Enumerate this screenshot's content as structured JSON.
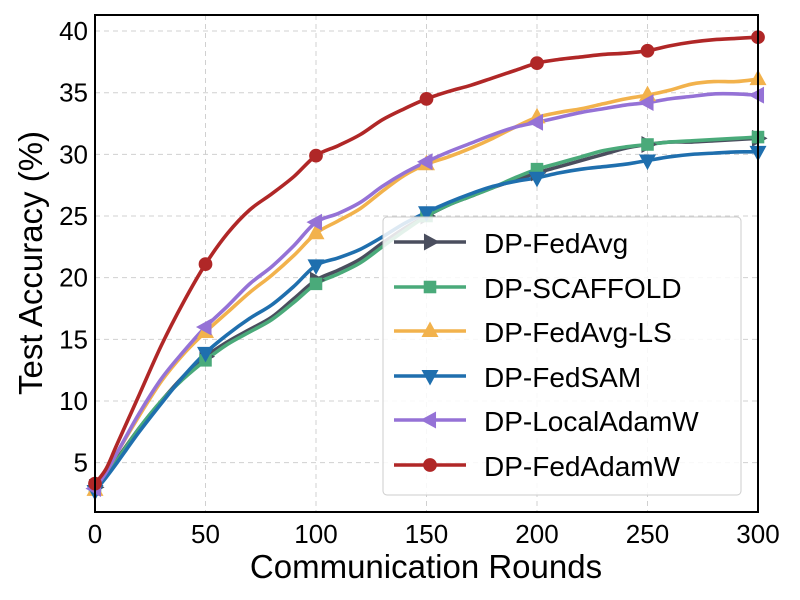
{
  "chart_data": {
    "type": "line",
    "title": "",
    "xlabel": "Communication Rounds",
    "ylabel": "Test Accuracy (%)",
    "xlim": [
      0,
      300
    ],
    "ylim": [
      1,
      41.3
    ],
    "xticks": [
      0,
      50,
      100,
      150,
      200,
      250,
      300
    ],
    "yticks": [
      5,
      10,
      15,
      20,
      25,
      30,
      35,
      40
    ],
    "grid": true,
    "legend_position": "lower-right",
    "x": [
      0,
      5,
      10,
      20,
      30,
      40,
      50,
      60,
      70,
      80,
      90,
      100,
      110,
      120,
      130,
      140,
      150,
      160,
      170,
      180,
      190,
      200,
      210,
      220,
      230,
      240,
      250,
      260,
      270,
      280,
      290,
      300
    ],
    "marker_x": [
      0,
      50,
      100,
      150,
      200,
      250,
      300
    ],
    "series": [
      {
        "name": "DP-FedAvg",
        "color": "#4a4e5e",
        "marker": "triangle-right",
        "values": [
          3.0,
          4.0,
          5.3,
          7.8,
          10.0,
          12.0,
          13.6,
          14.8,
          15.8,
          16.8,
          18.3,
          19.8,
          20.6,
          21.5,
          22.8,
          24.0,
          25.0,
          25.9,
          26.6,
          27.3,
          27.9,
          28.5,
          29.0,
          29.5,
          30.0,
          30.5,
          30.8,
          31.0,
          31.0,
          31.1,
          31.2,
          31.3
        ]
      },
      {
        "name": "DP-SCAFFOLD",
        "color": "#4aaa7a",
        "marker": "square",
        "values": [
          3.0,
          4.0,
          5.2,
          7.8,
          10.0,
          11.8,
          13.3,
          14.6,
          15.6,
          16.6,
          18.0,
          19.5,
          20.3,
          21.2,
          22.5,
          23.8,
          25.0,
          25.9,
          26.6,
          27.3,
          28.1,
          28.8,
          29.3,
          29.8,
          30.3,
          30.6,
          30.8,
          31.0,
          31.1,
          31.2,
          31.3,
          31.4
        ]
      },
      {
        "name": "DP-FedAvg-LS",
        "color": "#f2b24c",
        "marker": "triangle-up",
        "values": [
          2.8,
          4.2,
          5.8,
          8.8,
          11.6,
          13.8,
          15.6,
          17.2,
          18.8,
          20.2,
          21.8,
          23.6,
          24.6,
          25.6,
          27.0,
          28.3,
          29.2,
          29.8,
          30.5,
          31.3,
          32.2,
          33.0,
          33.4,
          33.7,
          34.1,
          34.5,
          34.8,
          35.2,
          35.7,
          35.9,
          35.9,
          36.1
        ]
      },
      {
        "name": "DP-FedSAM",
        "color": "#1f6fae",
        "marker": "triangle-down",
        "values": [
          2.7,
          3.8,
          5.0,
          7.5,
          9.8,
          12.0,
          13.9,
          15.4,
          16.7,
          17.8,
          19.3,
          21.0,
          21.6,
          22.3,
          23.3,
          24.4,
          25.3,
          26.1,
          26.8,
          27.4,
          27.8,
          28.1,
          28.5,
          28.8,
          29.0,
          29.2,
          29.5,
          29.8,
          30.0,
          30.1,
          30.2,
          30.2
        ]
      },
      {
        "name": "DP-LocalAdamW",
        "color": "#9572d6",
        "marker": "triangle-left",
        "values": [
          2.9,
          4.2,
          5.8,
          9.0,
          11.8,
          14.0,
          16.0,
          17.7,
          19.5,
          20.9,
          22.6,
          24.5,
          25.2,
          26.1,
          27.4,
          28.5,
          29.4,
          30.2,
          30.9,
          31.6,
          32.2,
          32.6,
          33.0,
          33.4,
          33.7,
          34.0,
          34.2,
          34.5,
          34.7,
          34.9,
          34.9,
          34.8
        ]
      },
      {
        "name": "DP-FedAdamW",
        "color": "#b02727",
        "marker": "circle",
        "values": [
          3.3,
          4.5,
          6.5,
          10.5,
          14.5,
          18.0,
          21.1,
          23.6,
          25.5,
          26.8,
          28.2,
          29.9,
          30.7,
          31.6,
          32.8,
          33.7,
          34.5,
          35.1,
          35.6,
          36.2,
          36.8,
          37.4,
          37.7,
          37.9,
          38.1,
          38.2,
          38.4,
          38.8,
          39.1,
          39.3,
          39.4,
          39.5
        ]
      }
    ]
  }
}
